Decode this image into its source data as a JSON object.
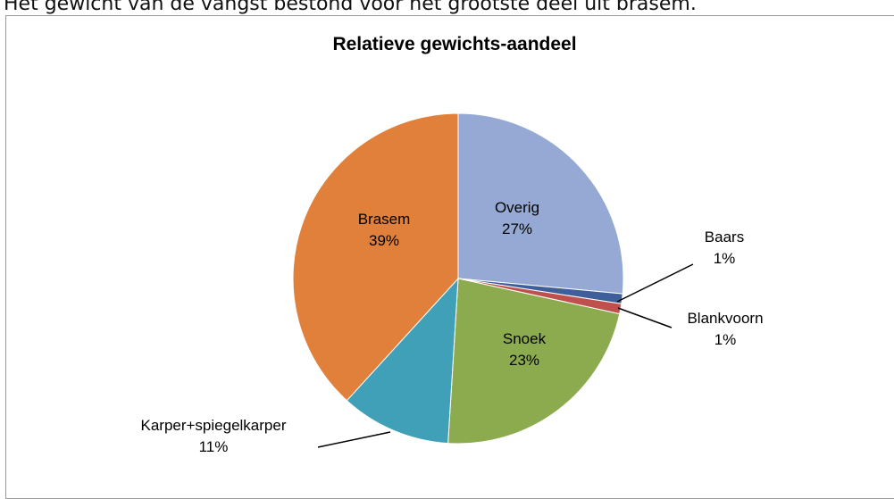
{
  "page": {
    "caption": "Het gewicht van de vangst bestond voor het grootste deel uit brasem."
  },
  "chart_data": {
    "type": "pie",
    "title": "Relatieve gewichts-aandeel",
    "slices": [
      {
        "name": "Overig",
        "value": 27,
        "label": "27%",
        "color": "#95a9d4"
      },
      {
        "name": "Baars",
        "value": 1,
        "label": "1%",
        "color": "#3f5f9a"
      },
      {
        "name": "Blankvoorn",
        "value": 1,
        "label": "1%",
        "color": "#c0504d"
      },
      {
        "name": "Snoek",
        "value": 23,
        "label": "23%",
        "color": "#8cab4e"
      },
      {
        "name": "Karper+spiegelkarper",
        "value": 11,
        "label": "11%",
        "color": "#3fa0b8"
      },
      {
        "name": "Brasem",
        "value": 39,
        "label": "39%",
        "color": "#e0803a"
      }
    ]
  }
}
